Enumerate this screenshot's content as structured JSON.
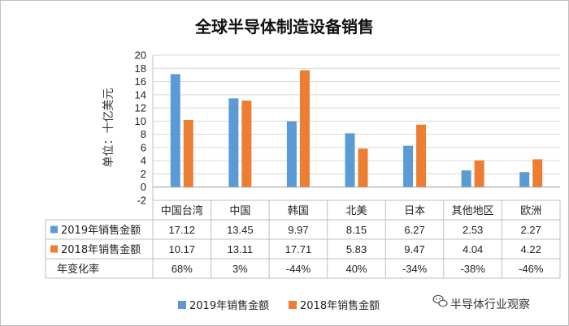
{
  "chart_data": {
    "type": "bar",
    "title": "全球半导体制造设备销售",
    "ylabel": "单位：十亿美元",
    "ylim": [
      -2,
      20
    ],
    "yticks": [
      -2,
      0,
      2,
      4,
      6,
      8,
      10,
      12,
      14,
      16,
      18,
      20
    ],
    "grid": true,
    "legend_position": "bottom",
    "categories": [
      "中国台湾",
      "中国",
      "韩国",
      "北美",
      "日本",
      "其他地区",
      "欧洲"
    ],
    "series": [
      {
        "name": "2019年销售金额",
        "color": "#5b9bd5",
        "values": [
          17.12,
          13.45,
          9.97,
          8.15,
          6.27,
          2.53,
          2.27
        ]
      },
      {
        "name": "2018年销售金额",
        "color": "#ed7d31",
        "values": [
          10.17,
          13.11,
          17.71,
          5.83,
          9.47,
          4.04,
          4.22
        ]
      }
    ],
    "table": {
      "rows": [
        {
          "label": "2019年销售金额",
          "marker_color": "#5b9bd5",
          "cells": [
            "17.12",
            "13.45",
            "9.97",
            "8.15",
            "6.27",
            "2.53",
            "2.27"
          ]
        },
        {
          "label": "2018年销售金额",
          "marker_color": "#ed7d31",
          "cells": [
            "10.17",
            "13.11",
            "17.71",
            "5.83",
            "9.47",
            "4.04",
            "4.22"
          ]
        },
        {
          "label": "年变化率",
          "marker_color": "",
          "cells": [
            "68%",
            "3%",
            "-44%",
            "40%",
            "-34%",
            "-38%",
            "-46%"
          ]
        }
      ]
    }
  },
  "watermark": {
    "text": "半导体行业观察",
    "icon": "wechat-icon"
  }
}
